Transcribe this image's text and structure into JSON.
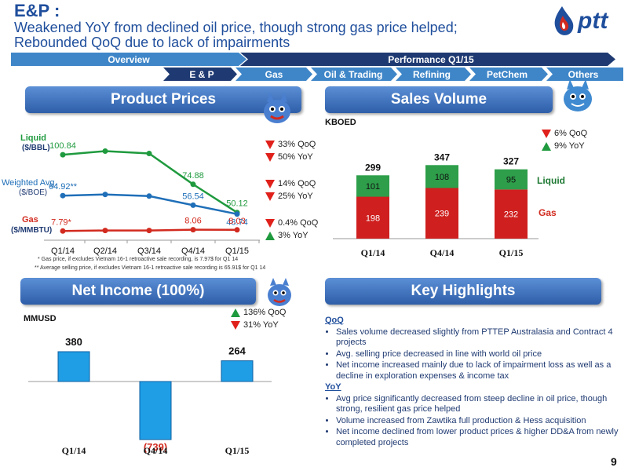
{
  "header": {
    "title_main": "E&P",
    "title_colon": ":",
    "subtitle_lines": [
      "Weakened YoY from declined oil price, though strong gas price helped;",
      "Rebounded QoQ due to lack of impairments"
    ],
    "logo_text": "ptt",
    "page_number": "9"
  },
  "nav": {
    "overview": "Overview",
    "performance": "Performance Q1/15",
    "tabs": [
      "E & P",
      "Gas",
      "Oil & Trading",
      "Refining",
      "PetChem",
      "Others"
    ]
  },
  "colors": {
    "navy": "#1f3a72",
    "green": "#1f9a3e",
    "red": "#d22a1f",
    "blue_bar": "#1f8fd6",
    "tab_active": "#1f3a72",
    "tab_inactive": "#3f86c8"
  },
  "product_prices": {
    "header": "Product Prices",
    "series_labels": {
      "liquid": "Liquid",
      "liquid_unit": "($/BBL)",
      "weighted": "Weighted Avg.",
      "weighted_unit": "($/BOE)",
      "gas": "Gas",
      "gas_unit": "($/MMBTU)"
    },
    "footnotes": [
      "* Gas price, if excludes Vietnam 16-1 retroactive sale recording, is  7.97$ for Q1 14",
      "** Average selling price, if excludes Vietnam 16-1 retroactive sale recording is 65.91$ for Q1 14"
    ],
    "changes": [
      {
        "dir": "down",
        "text": "33% QoQ"
      },
      {
        "dir": "down",
        "text": "50% YoY"
      },
      {
        "dir": "down",
        "text": "14% QoQ"
      },
      {
        "dir": "down",
        "text": "25% YoY"
      },
      {
        "dir": "down",
        "text": "0.4% QoQ"
      },
      {
        "dir": "up",
        "text": "3% YoY"
      }
    ]
  },
  "sales_volume": {
    "header": "Sales Volume",
    "unit": "KBOED",
    "changes": [
      {
        "dir": "down",
        "text": "6% QoQ"
      },
      {
        "dir": "up",
        "text": "9% YoY"
      }
    ],
    "legend_liquid": "Liquid",
    "legend_gas": "Gas"
  },
  "net_income": {
    "header": "Net Income (100%)",
    "unit": "MMUSD",
    "changes": [
      {
        "dir": "up",
        "text": "136% QoQ"
      },
      {
        "dir": "down",
        "text": "31% YoY"
      }
    ]
  },
  "key_highlights": {
    "header": "Key Highlights",
    "qoq_label": "QoQ",
    "qoq_items": [
      "Sales volume decreased slightly from PTTEP Australasia and Contract 4 projects",
      "Avg. selling price decreased  in line with world oil price",
      "Net income increased mainly due to lack of impairment loss as well as a decline in exploration expenses & income tax"
    ],
    "yoy_label": "YoY",
    "yoy_items": [
      "Avg price significantly decreased from steep decline in oil price, though strong, resilient gas price helped",
      "Volume increased from Zawtika full production & Hess acquisition",
      "Net income declined from lower product prices & higher DD&A from newly completed projects"
    ]
  },
  "chart_data": [
    {
      "type": "line",
      "categories": [
        "Q1/14",
        "Q2/14",
        "Q3/14",
        "Q4/14",
        "Q1/15"
      ],
      "series": [
        {
          "name": "Liquid ($/BBL)",
          "values": [
            100.84,
            104,
            102,
            74.88,
            50.12
          ],
          "labels": [
            "100.84",
            "",
            "",
            "74.88",
            "50.12"
          ],
          "color": "#1f9a3e"
        },
        {
          "name": "Weighted Avg. ($/BOE)",
          "values": [
            64.92,
            66,
            64.5,
            56.54,
            48.74
          ],
          "labels": [
            "64.92**",
            "",
            "",
            "56.54",
            "48.74"
          ],
          "color": "#1f6fb8"
        },
        {
          "name": "Gas ($/MMBTU)",
          "values": [
            7.79,
            7.9,
            7.9,
            8.06,
            8.03
          ],
          "labels": [
            "7.79*",
            "",
            "",
            "8.06",
            "8.03"
          ],
          "color": "#d22a1f"
        }
      ]
    },
    {
      "type": "bar",
      "stacked": true,
      "categories": [
        "Q1/14",
        "Q4/14",
        "Q1/15"
      ],
      "series": [
        {
          "name": "Gas",
          "values": [
            198,
            239,
            232
          ],
          "color": "#cf1f1f"
        },
        {
          "name": "Liquid",
          "values": [
            101,
            108,
            95
          ],
          "color": "#2e9e4a"
        }
      ],
      "totals": [
        299,
        347,
        327
      ]
    },
    {
      "type": "bar",
      "categories": [
        "Q1/14",
        "Q4/14",
        "Q1/15"
      ],
      "values": [
        380,
        -739,
        264
      ],
      "labels": [
        "380",
        "(739)",
        "264"
      ]
    }
  ]
}
